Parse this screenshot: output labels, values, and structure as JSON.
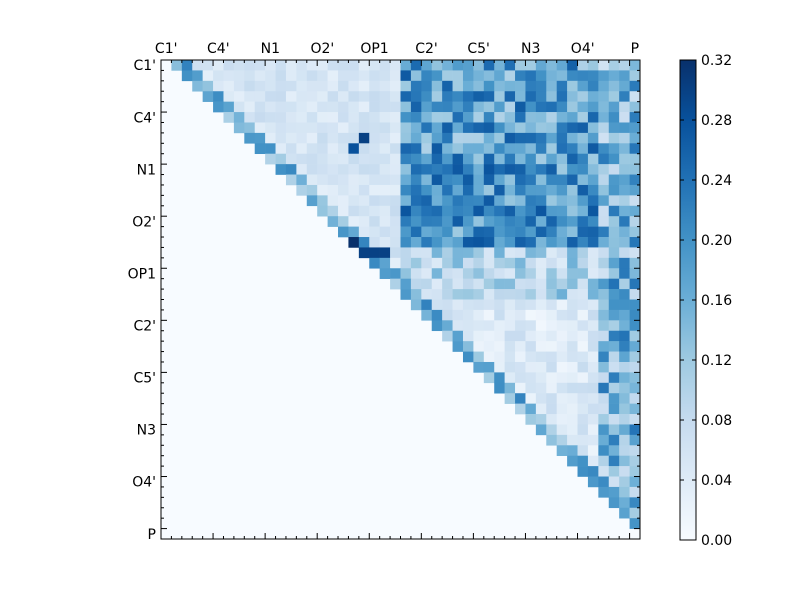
{
  "chart_data": {
    "type": "heatmap",
    "title": "",
    "labels": [
      "C1'",
      "C4'",
      "N1",
      "O2'",
      "OP1",
      "C2'",
      "C5'",
      "N3",
      "O4'",
      "P"
    ],
    "cells_per_label": 5,
    "colorbar": {
      "min": 0.0,
      "max": 0.32,
      "ticks": [
        "0.00",
        "0.04",
        "0.08",
        "0.12",
        "0.16",
        "0.20",
        "0.24",
        "0.28",
        "0.32"
      ],
      "colors": [
        "#f7fbff",
        "#deebf7",
        "#c6dbef",
        "#9ecae1",
        "#6baed6",
        "#4292c6",
        "#2171b5",
        "#08519c",
        "#08306b"
      ]
    },
    "upper_triangle_only": true,
    "notes": "46x46 matrix, values estimated from color intensity (0 to ~0.32)"
  }
}
